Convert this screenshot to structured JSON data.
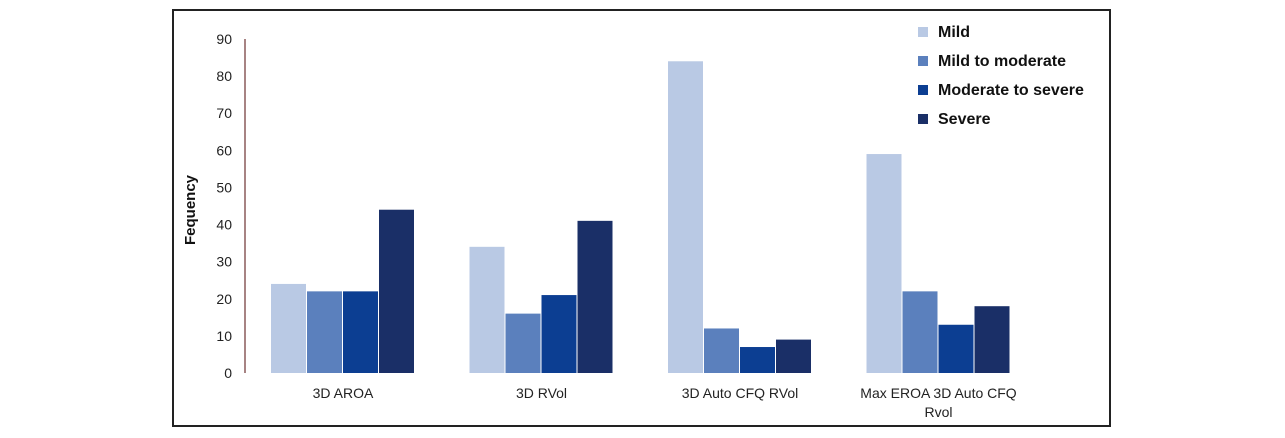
{
  "chart_data": {
    "type": "bar",
    "title": "",
    "xlabel": "",
    "ylabel": "Fequency",
    "ylim": [
      0,
      90
    ],
    "yticks": [
      0,
      10,
      20,
      30,
      40,
      50,
      60,
      70,
      80,
      90
    ],
    "grid": false,
    "legend_position": "top-right",
    "categories": [
      "3D AROA",
      "3D RVol",
      "3D Auto CFQ RVol",
      "Max EROA 3D Auto CFQ Rvol"
    ],
    "series": [
      {
        "name": "Mild",
        "color": "#b9c9e4",
        "values": [
          24,
          34,
          84,
          59
        ]
      },
      {
        "name": "Mild to moderate",
        "color": "#5b80bd",
        "values": [
          22,
          16,
          12,
          22
        ]
      },
      {
        "name": "Moderate to severe",
        "color": "#0c3e92",
        "values": [
          22,
          21,
          7,
          13
        ]
      },
      {
        "name": "Severe",
        "color": "#1a2f67",
        "values": [
          44,
          41,
          9,
          18
        ]
      }
    ]
  }
}
